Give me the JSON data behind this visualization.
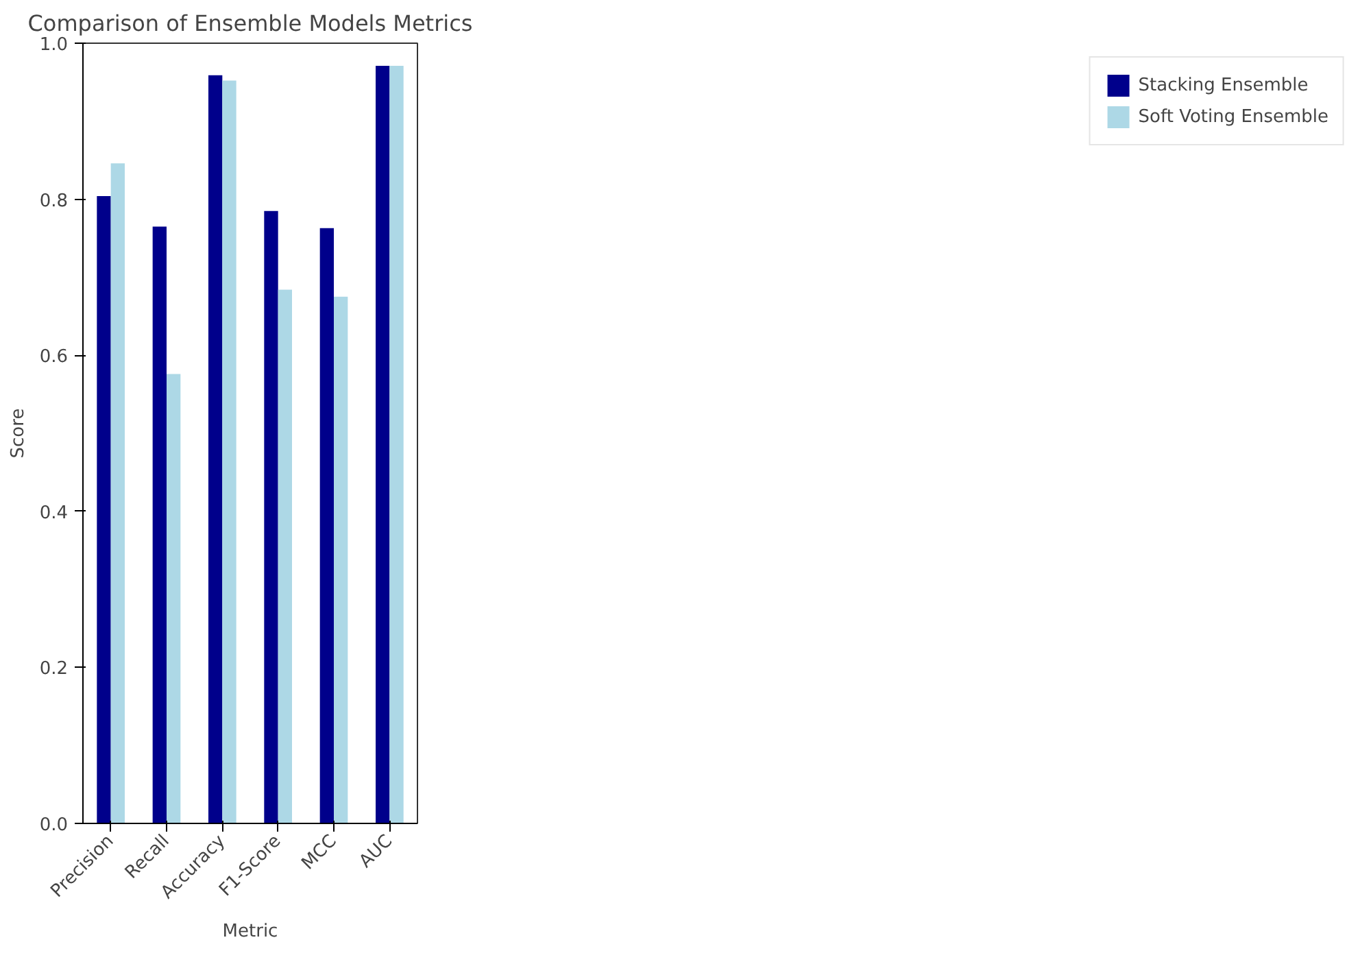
{
  "chart_data": {
    "type": "bar",
    "title": "Comparison of Ensemble Models Metrics",
    "xlabel": "Metric",
    "ylabel": "Score",
    "categories": [
      "Precision",
      "Recall",
      "Accuracy",
      "F1-Score",
      "MCC",
      "AUC"
    ],
    "series": [
      {
        "name": "Stacking Ensemble",
        "color": "#00008b",
        "values": [
          0.804,
          0.765,
          0.959,
          0.785,
          0.763,
          0.971
        ]
      },
      {
        "name": "Soft Voting Ensemble",
        "color": "#add8e6",
        "values": [
          0.846,
          0.576,
          0.952,
          0.684,
          0.675,
          0.971
        ]
      }
    ],
    "ylim": [
      0,
      1
    ],
    "yticks": [
      {
        "value": 0,
        "label": "0.0"
      },
      {
        "value": 0.2,
        "label": "0.2"
      },
      {
        "value": 0.4,
        "label": "0.4"
      },
      {
        "value": 0.6,
        "label": "0.6"
      },
      {
        "value": 0.8,
        "label": "0.8"
      },
      {
        "value": 1,
        "label": "1.0"
      }
    ],
    "grid": false,
    "legend": "right"
  }
}
